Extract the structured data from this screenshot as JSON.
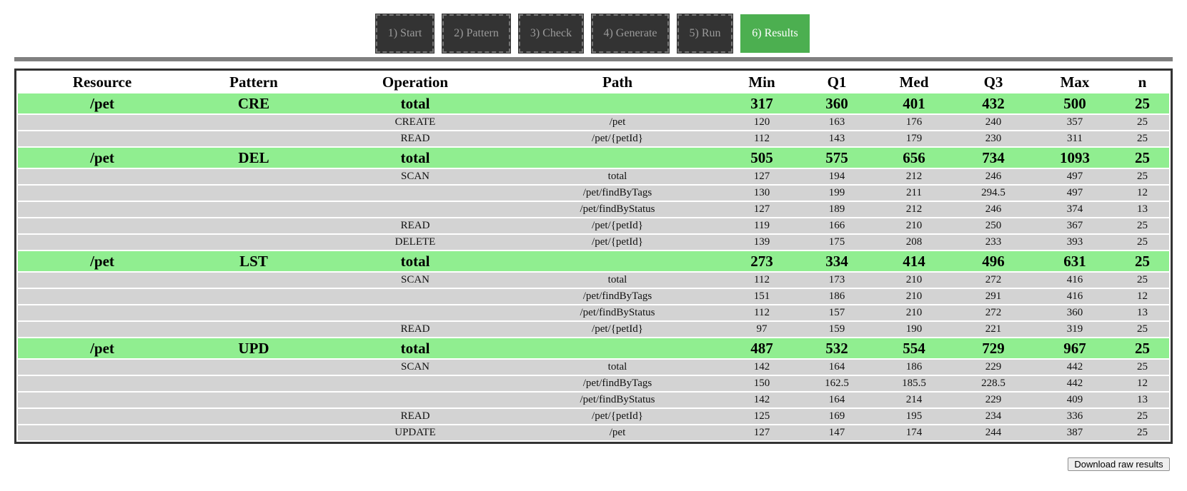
{
  "steps": [
    {
      "label": "1) Start"
    },
    {
      "label": "2) Pattern"
    },
    {
      "label": "3) Check"
    },
    {
      "label": "4) Generate"
    },
    {
      "label": "5) Run"
    },
    {
      "label": "6) Results"
    }
  ],
  "active_step": 5,
  "colors": {
    "tab_inactive": "#333333",
    "tab_active": "#4caf50",
    "total_row": "#90ee90",
    "detail_row": "#d3d3d3"
  },
  "table": {
    "columns": [
      "Resource",
      "Pattern",
      "Operation",
      "Path",
      "Min",
      "Q1",
      "Med",
      "Q3",
      "Max",
      "n"
    ],
    "rows": [
      {
        "kind": "total",
        "cells": [
          "/pet",
          "CRE",
          "total",
          "",
          "317",
          "360",
          "401",
          "432",
          "500",
          "25"
        ]
      },
      {
        "kind": "detail",
        "cells": [
          "",
          "",
          "CREATE",
          "/pet",
          "120",
          "163",
          "176",
          "240",
          "357",
          "25"
        ]
      },
      {
        "kind": "detail",
        "cells": [
          "",
          "",
          "READ",
          "/pet/{petId}",
          "112",
          "143",
          "179",
          "230",
          "311",
          "25"
        ]
      },
      {
        "kind": "total",
        "cells": [
          "/pet",
          "DEL",
          "total",
          "",
          "505",
          "575",
          "656",
          "734",
          "1093",
          "25"
        ]
      },
      {
        "kind": "detail",
        "cells": [
          "",
          "",
          "SCAN",
          "total",
          "127",
          "194",
          "212",
          "246",
          "497",
          "25"
        ]
      },
      {
        "kind": "detail",
        "cells": [
          "",
          "",
          "",
          "/pet/findByTags",
          "130",
          "199",
          "211",
          "294.5",
          "497",
          "12"
        ]
      },
      {
        "kind": "detail",
        "cells": [
          "",
          "",
          "",
          "/pet/findByStatus",
          "127",
          "189",
          "212",
          "246",
          "374",
          "13"
        ]
      },
      {
        "kind": "detail",
        "cells": [
          "",
          "",
          "READ",
          "/pet/{petId}",
          "119",
          "166",
          "210",
          "250",
          "367",
          "25"
        ]
      },
      {
        "kind": "detail",
        "cells": [
          "",
          "",
          "DELETE",
          "/pet/{petId}",
          "139",
          "175",
          "208",
          "233",
          "393",
          "25"
        ]
      },
      {
        "kind": "total",
        "cells": [
          "/pet",
          "LST",
          "total",
          "",
          "273",
          "334",
          "414",
          "496",
          "631",
          "25"
        ]
      },
      {
        "kind": "detail",
        "cells": [
          "",
          "",
          "SCAN",
          "total",
          "112",
          "173",
          "210",
          "272",
          "416",
          "25"
        ]
      },
      {
        "kind": "detail",
        "cells": [
          "",
          "",
          "",
          "/pet/findByTags",
          "151",
          "186",
          "210",
          "291",
          "416",
          "12"
        ]
      },
      {
        "kind": "detail",
        "cells": [
          "",
          "",
          "",
          "/pet/findByStatus",
          "112",
          "157",
          "210",
          "272",
          "360",
          "13"
        ]
      },
      {
        "kind": "detail",
        "cells": [
          "",
          "",
          "READ",
          "/pet/{petId}",
          "97",
          "159",
          "190",
          "221",
          "319",
          "25"
        ]
      },
      {
        "kind": "total",
        "cells": [
          "/pet",
          "UPD",
          "total",
          "",
          "487",
          "532",
          "554",
          "729",
          "967",
          "25"
        ]
      },
      {
        "kind": "detail",
        "cells": [
          "",
          "",
          "SCAN",
          "total",
          "142",
          "164",
          "186",
          "229",
          "442",
          "25"
        ]
      },
      {
        "kind": "detail",
        "cells": [
          "",
          "",
          "",
          "/pet/findByTags",
          "150",
          "162.5",
          "185.5",
          "228.5",
          "442",
          "12"
        ]
      },
      {
        "kind": "detail",
        "cells": [
          "",
          "",
          "",
          "/pet/findByStatus",
          "142",
          "164",
          "214",
          "229",
          "409",
          "13"
        ]
      },
      {
        "kind": "detail",
        "cells": [
          "",
          "",
          "READ",
          "/pet/{petId}",
          "125",
          "169",
          "195",
          "234",
          "336",
          "25"
        ]
      },
      {
        "kind": "detail",
        "cells": [
          "",
          "",
          "UPDATE",
          "/pet",
          "127",
          "147",
          "174",
          "244",
          "387",
          "25"
        ]
      }
    ]
  },
  "download_button": {
    "label": "Download raw results"
  }
}
